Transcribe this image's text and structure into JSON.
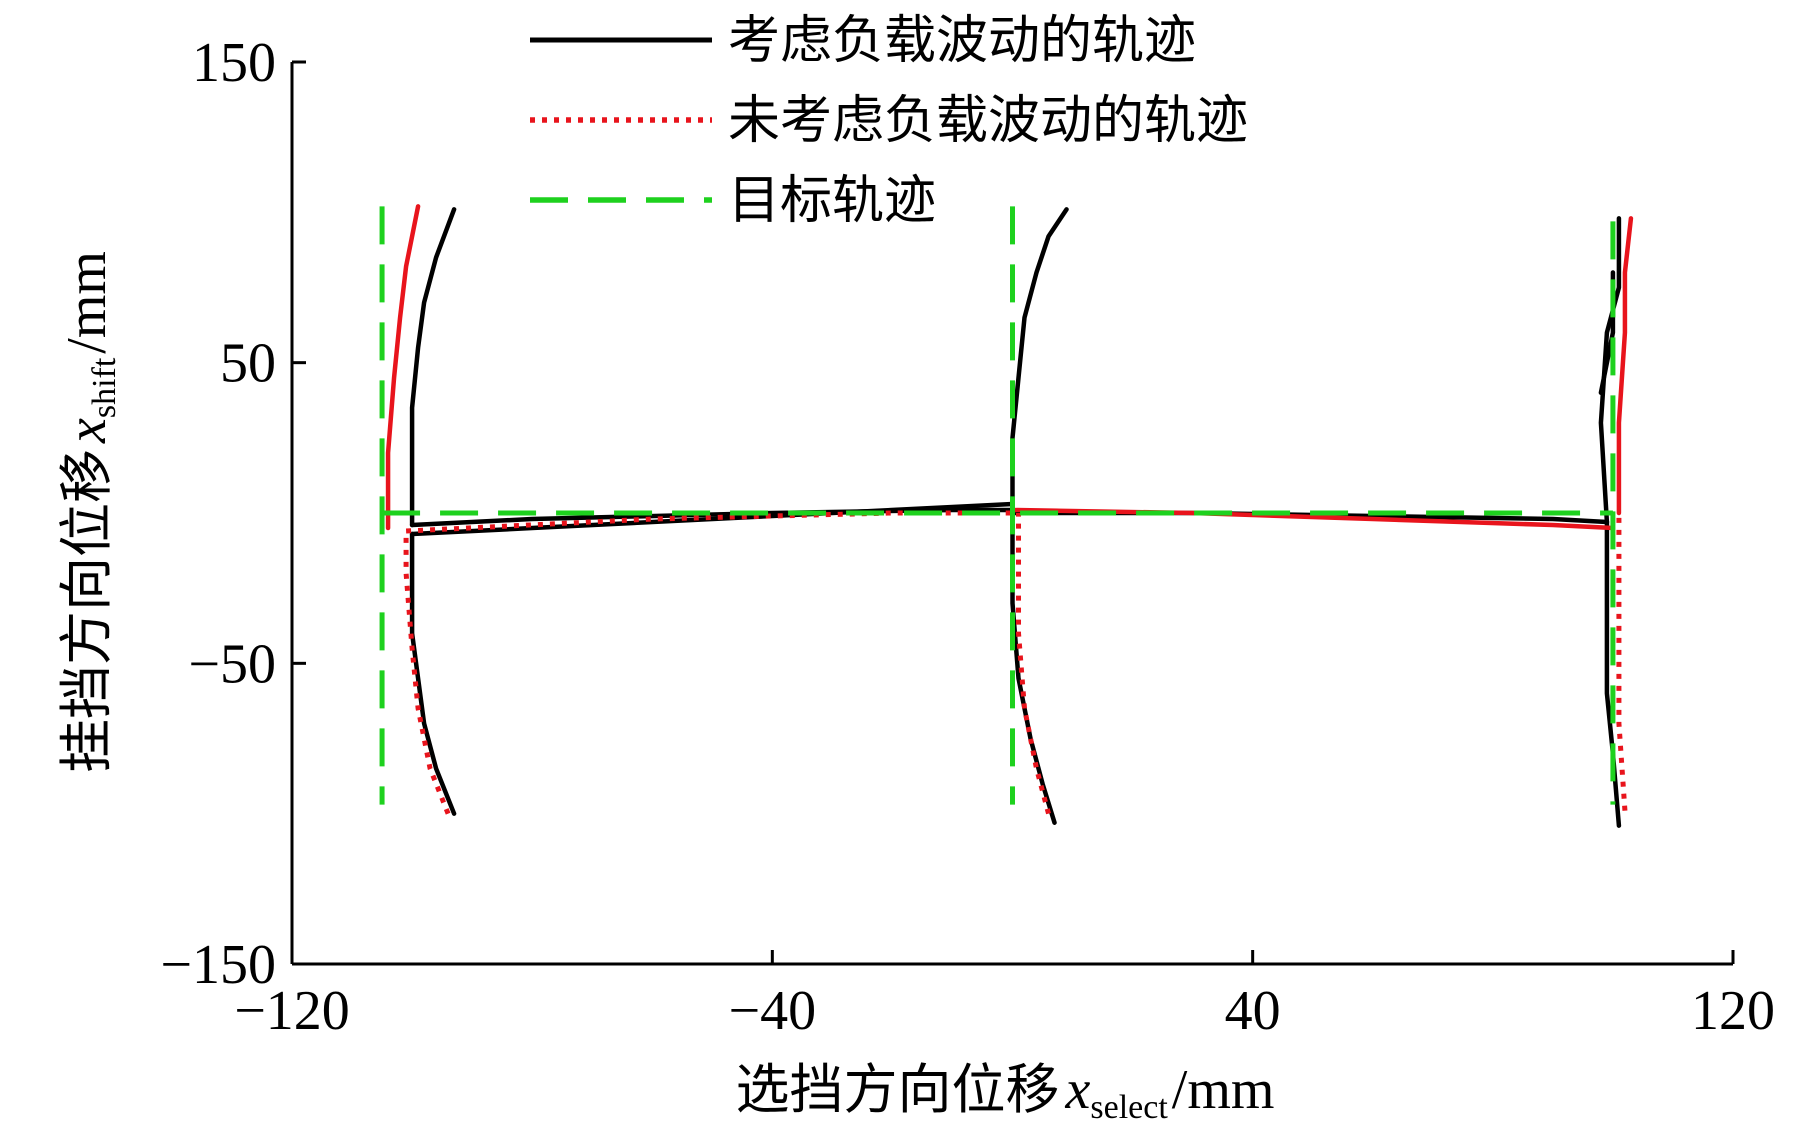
{
  "chart_data": {
    "type": "line",
    "xlabel": {
      "text": "选挡方向位移",
      "var": "x",
      "sub": "select",
      "unit": "/mm"
    },
    "ylabel": {
      "text": "挂挡方向位移",
      "var": "x",
      "sub": "shift",
      "unit": "/mm"
    },
    "xlim": [
      -120,
      120
    ],
    "ylim": [
      -150,
      150
    ],
    "xticks": [
      -120,
      -40,
      40,
      120
    ],
    "xtick_labels": [
      "−120",
      "−40",
      "40",
      "120"
    ],
    "yticks": [
      150,
      50,
      -50,
      -150
    ],
    "ytick_labels": [
      "150",
      "50",
      "−50",
      "−150"
    ],
    "grid": false,
    "legend_position": "top",
    "series": [
      {
        "name": "考虑负载波动的轨迹",
        "color": "#000000",
        "style": "solid",
        "segments": [
          [
            [
              -93,
              -100
            ],
            [
              -96,
              -85
            ],
            [
              -98,
              -70
            ],
            [
              -99,
              -55
            ],
            [
              -100,
              -40
            ],
            [
              -100,
              -25
            ],
            [
              -100,
              -7
            ]
          ],
          [
            [
              -100,
              -7
            ],
            [
              -80,
              -5
            ],
            [
              -40,
              -1
            ],
            [
              -10,
              2
            ],
            [
              0,
              3
            ]
          ],
          [
            [
              -100,
              -4
            ],
            [
              -80,
              -2
            ],
            [
              -40,
              0
            ],
            [
              -10,
              1
            ],
            [
              0,
              1
            ]
          ],
          [
            [
              -100,
              -4
            ],
            [
              -100,
              15
            ],
            [
              -100,
              35
            ],
            [
              -99,
              55
            ],
            [
              -98,
              70
            ],
            [
              -96,
              85
            ],
            [
              -93,
              101
            ]
          ],
          [
            [
              7,
              -103
            ],
            [
              5,
              -90
            ],
            [
              3,
              -75
            ],
            [
              1,
              -55
            ],
            [
              0,
              -30
            ],
            [
              0,
              -10
            ],
            [
              0,
              0
            ]
          ],
          [
            [
              0,
              0
            ],
            [
              0,
              25
            ],
            [
              1,
              45
            ],
            [
              2,
              65
            ],
            [
              4,
              80
            ],
            [
              6,
              92
            ],
            [
              9,
              101
            ]
          ],
          [
            [
              0,
              0
            ],
            [
              30,
              0
            ],
            [
              60,
              -1
            ],
            [
              90,
              -2
            ],
            [
              99,
              -3
            ]
          ],
          [
            [
              99,
              -3
            ],
            [
              98,
              30
            ],
            [
              99,
              60
            ],
            [
              101,
              75
            ],
            [
              101,
              98
            ]
          ],
          [
            [
              99,
              -3
            ],
            [
              99,
              -30
            ],
            [
              99,
              -60
            ],
            [
              100,
              -80
            ],
            [
              101,
              -104
            ]
          ],
          [
            [
              98,
              40
            ],
            [
              100,
              60
            ],
            [
              100,
              80
            ]
          ]
        ]
      },
      {
        "name": "未考虑负载波动的轨迹",
        "color": "#e8141c",
        "style": "dotted",
        "segments": [
          [
            [
              -94,
              -100
            ],
            [
              -97,
              -85
            ],
            [
              -99,
              -65
            ],
            [
              -100,
              -45
            ],
            [
              -101,
              -20
            ],
            [
              -101,
              -6
            ]
          ],
          [
            [
              -101,
              -6
            ],
            [
              -60,
              -2
            ],
            [
              -20,
              0
            ],
            [
              0,
              0
            ]
          ],
          [
            [
              6,
              -100
            ],
            [
              4,
              -85
            ],
            [
              2,
              -65
            ],
            [
              1,
              -40
            ],
            [
              1,
              -15
            ],
            [
              1,
              0
            ]
          ],
          [
            [
              102,
              -99
            ],
            [
              101,
              -70
            ],
            [
              101,
              -30
            ],
            [
              101,
              0
            ]
          ]
        ]
      },
      {
        "name": "__solid_red",
        "color": "#e8141c",
        "style": "solid",
        "segments": [
          [
            [
              -104,
              -5
            ],
            [
              -104,
              20
            ],
            [
              -103,
              45
            ],
            [
              -102,
              65
            ],
            [
              -101,
              82
            ],
            [
              -99,
              102
            ]
          ],
          [
            [
              0,
              1
            ],
            [
              30,
              0
            ],
            [
              60,
              -2
            ],
            [
              90,
              -4
            ],
            [
              100,
              -5
            ]
          ],
          [
            [
              101,
              0
            ],
            [
              101,
              30
            ],
            [
              102,
              60
            ],
            [
              102,
              80
            ],
            [
              103,
              98
            ]
          ]
        ]
      },
      {
        "name": "目标轨迹",
        "color": "#1ed11e",
        "style": "dashed",
        "segments": [
          [
            [
              -105,
              102
            ],
            [
              -105,
              0
            ],
            [
              -105,
              -97
            ]
          ],
          [
            [
              -105,
              0
            ],
            [
              0,
              0
            ],
            [
              100,
              0
            ]
          ],
          [
            [
              0,
              102
            ],
            [
              0,
              0
            ],
            [
              0,
              -97
            ]
          ],
          [
            [
              100,
              97
            ],
            [
              100,
              0
            ],
            [
              100,
              -97
            ]
          ]
        ]
      }
    ]
  },
  "legend": {
    "items": [
      {
        "label": "考虑负载波动的轨迹",
        "color": "#000000",
        "style": "solid"
      },
      {
        "label": "未考虑负载波动的轨迹",
        "color": "#e8141c",
        "style": "dotted"
      },
      {
        "label": "目标轨迹",
        "color": "#1ed11e",
        "style": "dashed"
      }
    ]
  }
}
